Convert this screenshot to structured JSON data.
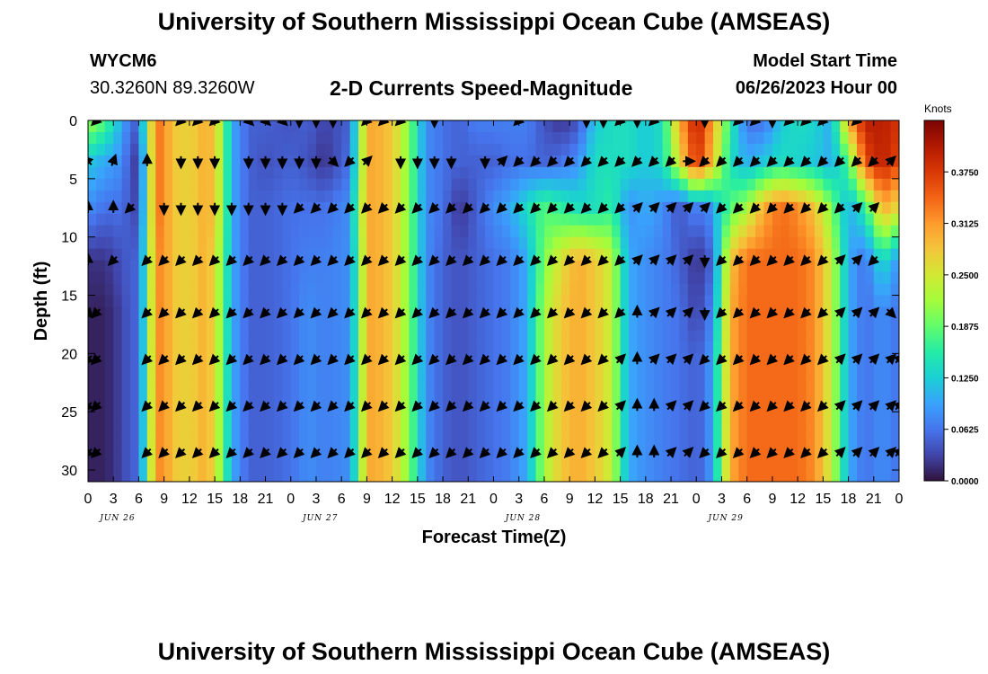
{
  "page": {
    "title": "University of Southern Mississippi Ocean Cube (AMSEAS)",
    "station_id": "WYCM6",
    "station_coords": "30.3260N  89.3260W",
    "chart_title": "2-D Currents Speed-Magnitude",
    "model_start_label": "Model Start Time",
    "model_start_value": "06/26/2023 Hour 00",
    "footer_title": "University of Southern Mississippi Ocean Cube (AMSEAS)"
  },
  "chart_data": {
    "type": "heatmap",
    "title": "2-D Currents Speed-Magnitude",
    "xlabel": "Forecast Time(Z)",
    "ylabel": "Depth (ft)",
    "x_hours_range": [
      0,
      96
    ],
    "x_tick_labels": [
      "0",
      "3",
      "6",
      "9",
      "12",
      "15",
      "18",
      "21",
      "0",
      "3",
      "6",
      "9",
      "12",
      "15",
      "18",
      "21",
      "0",
      "3",
      "6",
      "9",
      "12",
      "15",
      "18",
      "21",
      "0",
      "3",
      "6",
      "9",
      "12",
      "15",
      "18",
      "21",
      "0"
    ],
    "date_labels": [
      "JUN 26",
      "JUN 27",
      "JUN 28",
      "JUN 29"
    ],
    "y_ticks": [
      0,
      5,
      10,
      15,
      20,
      25,
      30
    ],
    "ylim": [
      0,
      31
    ],
    "y_inverted": true,
    "colorbar": {
      "title": "Knots",
      "range": [
        0,
        0.4375
      ],
      "ticks": [
        "0.0000",
        "0.0625",
        "0.1250",
        "0.1875",
        "0.2500",
        "0.3125",
        "0.3750"
      ],
      "colors": [
        "#30123b",
        "#4145ab",
        "#4675ed",
        "#39a2fc",
        "#1bcfd4",
        "#24eca6",
        "#61fc6c",
        "#a4fc3b",
        "#d1e834",
        "#f3c63a",
        "#fe9b2d",
        "#f36315",
        "#d93806",
        "#b11901",
        "#7a0403"
      ]
    },
    "depths_ft": [
      0,
      3.5,
      7.5,
      12,
      16.5,
      20.5,
      24.5,
      28.5
    ],
    "speed_profile_hours": [
      0,
      2,
      4,
      5,
      6,
      7,
      8,
      9,
      10,
      12,
      14,
      15,
      16,
      17,
      19,
      21,
      24,
      26,
      28,
      31,
      32,
      33,
      34,
      36,
      38,
      40,
      42,
      44,
      46,
      48,
      50,
      52,
      54,
      56,
      58,
      60,
      62,
      63,
      64,
      66,
      68,
      70,
      72,
      73,
      74,
      76,
      78,
      80,
      82,
      84,
      86,
      88,
      90,
      92,
      94,
      96
    ],
    "speed_profile_knots": [
      [
        0.22,
        0.18,
        0.1,
        0.06,
        0.05,
        0.2,
        0.34,
        0.32,
        0.28,
        0.27,
        0.3,
        0.28,
        0.2,
        0.1,
        0.05,
        0.05,
        0.04,
        0.05,
        0.03,
        0.05,
        0.18,
        0.3,
        0.3,
        0.28,
        0.2,
        0.08,
        0.06,
        0.05,
        0.07,
        0.07,
        0.07,
        0.07,
        0.04,
        0.02,
        0.04,
        0.12,
        0.14,
        0.14,
        0.14,
        0.12,
        0.14,
        0.3,
        0.4,
        0.36,
        0.3,
        0.16,
        0.06,
        0.06,
        0.12,
        0.14,
        0.13,
        0.1,
        0.3,
        0.4,
        0.4,
        0.38
      ],
      [
        0.12,
        0.1,
        0.08,
        0.04,
        0.02,
        0.18,
        0.34,
        0.32,
        0.28,
        0.27,
        0.3,
        0.28,
        0.2,
        0.1,
        0.05,
        0.04,
        0.05,
        0.04,
        0.02,
        0.06,
        0.18,
        0.3,
        0.3,
        0.28,
        0.2,
        0.08,
        0.06,
        0.05,
        0.05,
        0.05,
        0.06,
        0.06,
        0.05,
        0.06,
        0.08,
        0.14,
        0.14,
        0.14,
        0.14,
        0.12,
        0.14,
        0.26,
        0.38,
        0.34,
        0.28,
        0.14,
        0.1,
        0.12,
        0.14,
        0.13,
        0.12,
        0.1,
        0.18,
        0.36,
        0.4,
        0.36
      ],
      [
        0.08,
        0.06,
        0.06,
        0.04,
        0.03,
        0.18,
        0.34,
        0.32,
        0.28,
        0.27,
        0.3,
        0.28,
        0.2,
        0.1,
        0.05,
        0.05,
        0.06,
        0.06,
        0.06,
        0.08,
        0.2,
        0.3,
        0.3,
        0.28,
        0.2,
        0.08,
        0.06,
        0.02,
        0.05,
        0.08,
        0.1,
        0.14,
        0.18,
        0.16,
        0.14,
        0.14,
        0.16,
        0.12,
        0.08,
        0.1,
        0.08,
        0.04,
        0.08,
        0.06,
        0.1,
        0.18,
        0.22,
        0.3,
        0.34,
        0.32,
        0.28,
        0.2,
        0.1,
        0.16,
        0.3,
        0.26
      ],
      [
        0.02,
        0.02,
        0.04,
        0.05,
        0.05,
        0.18,
        0.32,
        0.32,
        0.28,
        0.27,
        0.3,
        0.26,
        0.18,
        0.1,
        0.05,
        0.05,
        0.06,
        0.07,
        0.07,
        0.08,
        0.18,
        0.3,
        0.3,
        0.28,
        0.2,
        0.08,
        0.05,
        0.04,
        0.05,
        0.06,
        0.07,
        0.1,
        0.2,
        0.26,
        0.3,
        0.28,
        0.24,
        0.16,
        0.1,
        0.08,
        0.07,
        0.05,
        0.02,
        0.03,
        0.06,
        0.28,
        0.34,
        0.34,
        0.34,
        0.34,
        0.32,
        0.24,
        0.1,
        0.06,
        0.14,
        0.08
      ],
      [
        0.01,
        0.01,
        0.03,
        0.05,
        0.05,
        0.18,
        0.32,
        0.32,
        0.28,
        0.27,
        0.3,
        0.26,
        0.18,
        0.1,
        0.05,
        0.05,
        0.06,
        0.08,
        0.07,
        0.08,
        0.18,
        0.3,
        0.3,
        0.28,
        0.2,
        0.08,
        0.05,
        0.04,
        0.05,
        0.06,
        0.07,
        0.1,
        0.22,
        0.28,
        0.3,
        0.28,
        0.24,
        0.16,
        0.1,
        0.08,
        0.07,
        0.06,
        0.03,
        0.05,
        0.08,
        0.3,
        0.34,
        0.34,
        0.34,
        0.34,
        0.32,
        0.24,
        0.1,
        0.06,
        0.08,
        0.06
      ],
      [
        0.01,
        0.01,
        0.03,
        0.05,
        0.05,
        0.18,
        0.32,
        0.32,
        0.28,
        0.27,
        0.3,
        0.26,
        0.18,
        0.1,
        0.05,
        0.05,
        0.06,
        0.08,
        0.07,
        0.08,
        0.18,
        0.3,
        0.3,
        0.28,
        0.2,
        0.08,
        0.05,
        0.04,
        0.05,
        0.06,
        0.07,
        0.1,
        0.22,
        0.28,
        0.3,
        0.28,
        0.24,
        0.16,
        0.1,
        0.08,
        0.07,
        0.06,
        0.05,
        0.06,
        0.1,
        0.3,
        0.34,
        0.34,
        0.34,
        0.34,
        0.32,
        0.24,
        0.1,
        0.06,
        0.08,
        0.06
      ],
      [
        0.01,
        0.01,
        0.03,
        0.05,
        0.05,
        0.18,
        0.32,
        0.32,
        0.28,
        0.27,
        0.3,
        0.26,
        0.18,
        0.1,
        0.05,
        0.05,
        0.06,
        0.08,
        0.07,
        0.08,
        0.18,
        0.3,
        0.3,
        0.28,
        0.2,
        0.08,
        0.05,
        0.04,
        0.05,
        0.06,
        0.07,
        0.1,
        0.22,
        0.28,
        0.3,
        0.28,
        0.24,
        0.16,
        0.1,
        0.08,
        0.07,
        0.06,
        0.05,
        0.06,
        0.1,
        0.3,
        0.34,
        0.34,
        0.34,
        0.34,
        0.32,
        0.24,
        0.1,
        0.06,
        0.08,
        0.06
      ],
      [
        0.01,
        0.01,
        0.03,
        0.05,
        0.05,
        0.18,
        0.32,
        0.32,
        0.28,
        0.27,
        0.3,
        0.26,
        0.18,
        0.1,
        0.05,
        0.05,
        0.06,
        0.08,
        0.07,
        0.08,
        0.18,
        0.3,
        0.3,
        0.28,
        0.2,
        0.08,
        0.05,
        0.04,
        0.05,
        0.06,
        0.07,
        0.1,
        0.22,
        0.28,
        0.3,
        0.28,
        0.24,
        0.16,
        0.1,
        0.08,
        0.07,
        0.06,
        0.05,
        0.06,
        0.1,
        0.3,
        0.34,
        0.34,
        0.34,
        0.34,
        0.32,
        0.24,
        0.1,
        0.06,
        0.08,
        0.06
      ]
    ],
    "vector_hours": [
      0,
      1,
      3,
      5,
      7,
      9,
      11,
      13,
      15,
      17,
      19,
      21,
      23,
      25,
      27,
      29,
      31,
      33,
      35,
      37,
      39,
      41,
      43,
      45,
      47,
      49,
      51,
      53,
      55,
      57,
      59,
      61,
      63,
      65,
      67,
      69,
      71,
      73,
      75,
      77,
      79,
      81,
      83,
      85,
      87,
      89,
      91,
      93,
      95,
      96
    ],
    "direction_key": "degrees toward which the current flows, 0 = north (up), 90 = east (right)",
    "vector_direction_deg": [
      [
        null,
        225,
        null,
        null,
        null,
        null,
        225,
        225,
        225,
        null,
        135,
        135,
        135,
        180,
        180,
        180,
        null,
        225,
        225,
        225,
        null,
        180,
        null,
        null,
        null,
        null,
        225,
        null,
        null,
        null,
        180,
        180,
        225,
        180,
        225,
        null,
        null,
        180,
        null,
        225,
        225,
        180,
        225,
        225,
        225,
        null,
        225,
        null,
        null,
        null
      ],
      [
        315,
        null,
        20,
        null,
        0,
        null,
        180,
        180,
        180,
        null,
        180,
        180,
        180,
        180,
        180,
        135,
        225,
        45,
        null,
        180,
        180,
        180,
        180,
        null,
        180,
        45,
        225,
        225,
        225,
        225,
        225,
        225,
        225,
        225,
        225,
        225,
        90,
        225,
        225,
        225,
        225,
        225,
        225,
        225,
        225,
        225,
        225,
        225,
        45,
        null
      ],
      [
        0,
        null,
        0,
        225,
        null,
        180,
        180,
        180,
        180,
        180,
        180,
        180,
        180,
        225,
        225,
        225,
        225,
        225,
        225,
        225,
        225,
        225,
        225,
        225,
        225,
        225,
        225,
        225,
        225,
        225,
        225,
        225,
        225,
        45,
        45,
        45,
        45,
        45,
        225,
        225,
        225,
        225,
        225,
        225,
        225,
        225,
        45,
        45,
        null,
        null
      ],
      [
        0,
        null,
        225,
        null,
        225,
        225,
        225,
        225,
        225,
        225,
        225,
        225,
        225,
        225,
        225,
        225,
        225,
        225,
        225,
        225,
        225,
        225,
        225,
        225,
        225,
        225,
        225,
        225,
        225,
        225,
        225,
        225,
        225,
        45,
        45,
        45,
        45,
        180,
        225,
        225,
        225,
        225,
        225,
        225,
        225,
        45,
        45,
        225,
        null,
        null
      ],
      [
        135,
        225,
        null,
        null,
        225,
        225,
        225,
        225,
        225,
        225,
        225,
        225,
        225,
        225,
        225,
        225,
        225,
        225,
        225,
        225,
        225,
        225,
        225,
        225,
        225,
        225,
        225,
        225,
        225,
        225,
        225,
        225,
        225,
        0,
        45,
        45,
        45,
        180,
        225,
        225,
        225,
        225,
        225,
        225,
        225,
        45,
        45,
        45,
        135,
        null
      ],
      [
        225,
        225,
        null,
        null,
        225,
        225,
        225,
        225,
        225,
        225,
        225,
        225,
        225,
        225,
        225,
        225,
        225,
        225,
        225,
        225,
        225,
        225,
        225,
        225,
        225,
        225,
        225,
        225,
        225,
        225,
        225,
        225,
        45,
        0,
        45,
        45,
        45,
        225,
        225,
        225,
        225,
        225,
        225,
        225,
        225,
        45,
        45,
        45,
        45,
        45
      ],
      [
        225,
        225,
        null,
        null,
        225,
        225,
        225,
        225,
        225,
        225,
        225,
        225,
        225,
        225,
        225,
        225,
        225,
        225,
        225,
        225,
        225,
        225,
        225,
        225,
        225,
        225,
        225,
        225,
        225,
        225,
        225,
        225,
        45,
        0,
        0,
        45,
        45,
        225,
        225,
        225,
        225,
        225,
        225,
        225,
        225,
        45,
        45,
        45,
        45,
        45
      ],
      [
        225,
        225,
        null,
        null,
        225,
        225,
        225,
        225,
        225,
        225,
        225,
        225,
        225,
        225,
        225,
        225,
        225,
        225,
        225,
        225,
        225,
        225,
        225,
        225,
        225,
        225,
        225,
        225,
        225,
        225,
        225,
        225,
        45,
        0,
        0,
        45,
        45,
        225,
        225,
        225,
        225,
        225,
        225,
        225,
        225,
        45,
        45,
        45,
        45,
        45
      ]
    ]
  }
}
